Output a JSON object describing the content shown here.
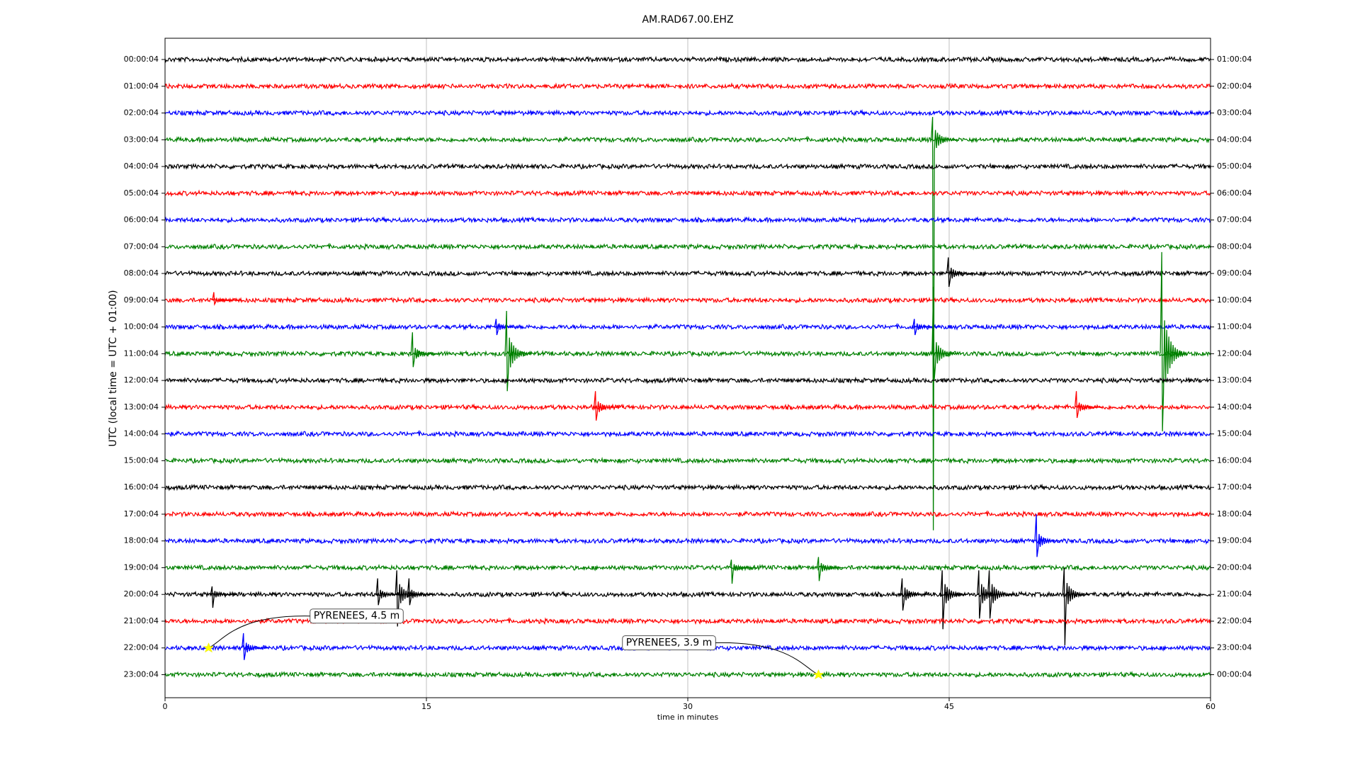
{
  "chart_data": {
    "type": "dayplot",
    "title": "AM.RAD67.00.EHZ",
    "xlabel": "time in minutes",
    "ylabel": "UTC (local time = UTC + 01:00)",
    "xlim": [
      0,
      60
    ],
    "xticks": [
      0,
      15,
      30,
      45,
      60
    ],
    "grid": true,
    "rows": [
      {
        "label": "00:00:04",
        "right_label": "01:00:04",
        "color": "#000000",
        "events": []
      },
      {
        "label": "01:00:04",
        "right_label": "02:00:04",
        "color": "#ff0000",
        "events": []
      },
      {
        "label": "02:00:04",
        "right_label": "03:00:04",
        "color": "#0000ff",
        "events": []
      },
      {
        "label": "03:00:04",
        "right_label": "04:00:04",
        "color": "#008000",
        "events": [
          {
            "x": 44.05,
            "up": 0.85,
            "down": 14.6
          }
        ]
      },
      {
        "label": "04:00:04",
        "right_label": "05:00:04",
        "color": "#000000",
        "events": []
      },
      {
        "label": "05:00:04",
        "right_label": "06:00:04",
        "color": "#ff0000",
        "events": []
      },
      {
        "label": "06:00:04",
        "right_label": "07:00:04",
        "color": "#0000ff",
        "events": []
      },
      {
        "label": "07:00:04",
        "right_label": "08:00:04",
        "color": "#008000",
        "events": []
      },
      {
        "label": "08:00:04",
        "right_label": "09:00:04",
        "color": "#000000",
        "events": [
          {
            "x": 44.95,
            "up": 0.6,
            "down": 0.5
          }
        ]
      },
      {
        "label": "09:00:04",
        "right_label": "10:00:04",
        "color": "#ff0000",
        "events": [
          {
            "x": 2.8,
            "up": 0.3,
            "down": 0.15
          }
        ]
      },
      {
        "label": "10:00:04",
        "right_label": "11:00:04",
        "color": "#0000ff",
        "events": [
          {
            "x": 19,
            "up": 0.3,
            "down": 0.3
          },
          {
            "x": 43,
            "up": 0.3,
            "down": 0.3
          }
        ]
      },
      {
        "label": "11:00:04",
        "right_label": "12:00:04",
        "color": "#008000",
        "events": [
          {
            "x": 14.2,
            "up": 0.8,
            "down": 0.5
          },
          {
            "x": 19.6,
            "up": 1.6,
            "down": 1.4
          },
          {
            "x": 44.1,
            "up": 2.5,
            "down": 1
          },
          {
            "x": 57.2,
            "up": 3.8,
            "down": 2.9
          }
        ]
      },
      {
        "label": "12:00:04",
        "right_label": "13:00:04",
        "color": "#000000",
        "events": []
      },
      {
        "label": "13:00:04",
        "right_label": "14:00:04",
        "color": "#ff0000",
        "events": [
          {
            "x": 24.7,
            "up": 0.6,
            "down": 0.5
          },
          {
            "x": 52.3,
            "up": 0.6,
            "down": 0.4
          }
        ]
      },
      {
        "label": "14:00:04",
        "right_label": "15:00:04",
        "color": "#0000ff",
        "events": []
      },
      {
        "label": "15:00:04",
        "right_label": "16:00:04",
        "color": "#008000",
        "events": []
      },
      {
        "label": "16:00:04",
        "right_label": "17:00:04",
        "color": "#000000",
        "events": []
      },
      {
        "label": "17:00:04",
        "right_label": "18:00:04",
        "color": "#ff0000",
        "events": []
      },
      {
        "label": "18:00:04",
        "right_label": "19:00:04",
        "color": "#0000ff",
        "events": [
          {
            "x": 50,
            "up": 1,
            "down": 0.6
          }
        ]
      },
      {
        "label": "19:00:04",
        "right_label": "20:00:04",
        "color": "#008000",
        "events": [
          {
            "x": 32.5,
            "up": 0.3,
            "down": 0.6
          },
          {
            "x": 37.5,
            "up": 0.4,
            "down": 0.5
          }
        ]
      },
      {
        "label": "20:00:04",
        "right_label": "21:00:04",
        "color": "#000000",
        "events": [
          {
            "x": 2.7,
            "up": 0.3,
            "down": 0.5
          },
          {
            "x": 12.2,
            "up": 0.6,
            "down": 0.4
          },
          {
            "x": 13.3,
            "up": 0.9,
            "down": 1.2
          },
          {
            "x": 14,
            "up": 0.6,
            "down": 0.4
          },
          {
            "x": 42.3,
            "up": 0.6,
            "down": 0.6
          },
          {
            "x": 44.6,
            "up": 0.9,
            "down": 1.3
          },
          {
            "x": 46.7,
            "up": 0.9,
            "down": 0.9
          },
          {
            "x": 47.3,
            "up": 0.9,
            "down": 0.9
          },
          {
            "x": 51.6,
            "up": 1,
            "down": 1.9
          }
        ]
      },
      {
        "label": "21:00:04",
        "right_label": "22:00:04",
        "color": "#ff0000",
        "events": []
      },
      {
        "label": "22:00:04",
        "right_label": "23:00:04",
        "color": "#0000ff",
        "events": [
          {
            "x": 4.5,
            "up": 0.55,
            "down": 0.45
          }
        ]
      },
      {
        "label": "23:00:04",
        "right_label": "00:00:04",
        "color": "#008000",
        "events": []
      }
    ],
    "annotations": [
      {
        "text": "PYRENEES, 4.5 m",
        "row": 22,
        "x": 2.5
      },
      {
        "text": "PYRENEES, 3.9 m",
        "row": 23,
        "x": 37.5
      }
    ]
  }
}
